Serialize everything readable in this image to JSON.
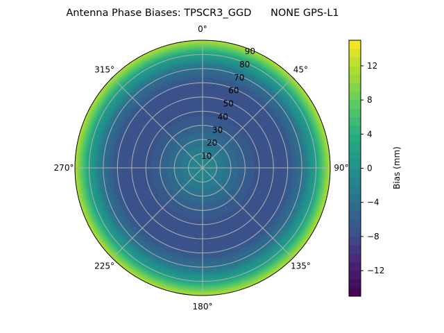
{
  "chart_data": {
    "type": "heatmap",
    "projection": "polar",
    "title": "Antenna Phase Biases: TPSCR3_GGD      NONE GPS-L1",
    "theta_direction": "clockwise",
    "theta_zero": "top",
    "theta_tick_labels": [
      "0°",
      "45°",
      "90°",
      "135°",
      "180°",
      "225°",
      "270°",
      "315°"
    ],
    "theta_ticks": [
      0,
      45,
      90,
      135,
      180,
      225,
      270,
      315
    ],
    "r_ticks": [
      10,
      20,
      30,
      40,
      50,
      60,
      70,
      80,
      90
    ],
    "r_tick_labels": [
      "10",
      "20",
      "30",
      "40",
      "50",
      "60",
      "70",
      "80",
      "90"
    ],
    "rlim": [
      0,
      90
    ],
    "grid": true,
    "radial_profile": {
      "zenith_deg": [
        0,
        10,
        20,
        30,
        40,
        50,
        60,
        70,
        80,
        90
      ],
      "bias_mm": [
        -1,
        -2,
        -4,
        -6,
        -7.5,
        -8,
        -7,
        -4,
        2,
        12
      ]
    },
    "colorbar": {
      "label": "Bias (mm)",
      "colormap": "viridis",
      "range": [
        -15,
        15
      ],
      "level_step": 1,
      "ticks": [
        12,
        8,
        4,
        0,
        -4,
        -8,
        -12
      ],
      "tick_labels": [
        "12",
        "8",
        "4",
        "0",
        "−4",
        "−8",
        "−12"
      ]
    }
  }
}
